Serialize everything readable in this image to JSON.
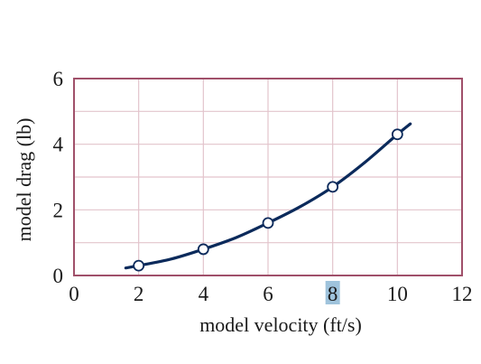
{
  "chart_data": {
    "type": "line",
    "title": "",
    "xlabel": "model velocity (ft/s)",
    "ylabel": "model drag (lb)",
    "xlim": [
      0,
      12
    ],
    "ylim": [
      0,
      6
    ],
    "x_ticks": [
      "0",
      "2",
      "4",
      "6",
      "8",
      "10",
      "12"
    ],
    "y_ticks": [
      "0",
      "2",
      "4",
      "6"
    ],
    "grid": true,
    "highlighted_tick": "8",
    "series": [
      {
        "points": [
          {
            "x": 2,
            "y": 0.3
          },
          {
            "x": 4,
            "y": 0.8
          },
          {
            "x": 6,
            "y": 1.6
          },
          {
            "x": 8,
            "y": 2.7
          },
          {
            "x": 10,
            "y": 4.3
          }
        ],
        "fit_curve": {
          "x": [
            1.6,
            2,
            3,
            4,
            5,
            6,
            7,
            8,
            9,
            10,
            10.4
          ],
          "y": [
            0.23,
            0.3,
            0.5,
            0.8,
            1.15,
            1.6,
            2.1,
            2.7,
            3.45,
            4.3,
            4.62
          ]
        }
      }
    ],
    "colors": {
      "line": "#0b2a5b",
      "frame": "#a0506a",
      "grid": "#e3c4cc",
      "marker_fill": "#ffffff",
      "tick_highlight": "#9fc3dc"
    }
  }
}
